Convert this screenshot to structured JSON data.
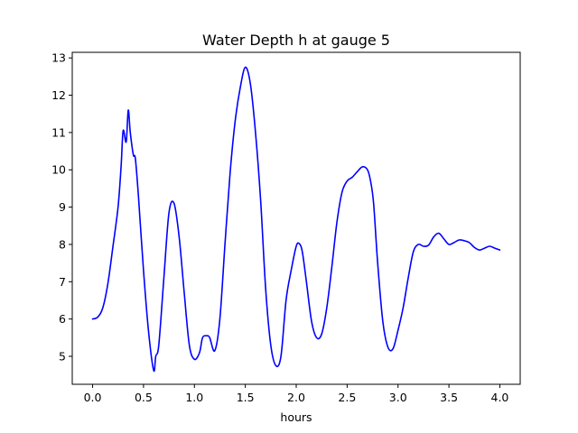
{
  "chart_data": {
    "type": "line",
    "title": "Water Depth h at gauge 5",
    "xlabel": "hours",
    "ylabel": "",
    "xlim": [
      -0.2,
      4.2
    ],
    "ylim": [
      4.25,
      13.15
    ],
    "xticks": [
      0.0,
      0.5,
      1.0,
      1.5,
      2.0,
      2.5,
      3.0,
      3.5,
      4.0
    ],
    "xtick_labels": [
      "0.0",
      "0.5",
      "1.0",
      "1.5",
      "2.0",
      "2.5",
      "3.0",
      "3.5",
      "4.0"
    ],
    "yticks": [
      5,
      6,
      7,
      8,
      9,
      10,
      11,
      12,
      13
    ],
    "ytick_labels": [
      "5",
      "6",
      "7",
      "8",
      "9",
      "10",
      "11",
      "12",
      "13"
    ],
    "grid": false,
    "legend": "none",
    "series": [
      {
        "color": "#0000ff",
        "x": [
          0.0,
          0.05,
          0.1,
          0.15,
          0.2,
          0.25,
          0.28,
          0.3,
          0.33,
          0.35,
          0.37,
          0.4,
          0.42,
          0.45,
          0.5,
          0.55,
          0.6,
          0.62,
          0.65,
          0.7,
          0.75,
          0.8,
          0.85,
          0.9,
          0.95,
          1.0,
          1.05,
          1.08,
          1.12,
          1.15,
          1.2,
          1.25,
          1.3,
          1.35,
          1.4,
          1.45,
          1.5,
          1.55,
          1.6,
          1.65,
          1.7,
          1.75,
          1.8,
          1.85,
          1.9,
          1.95,
          2.0,
          2.03,
          2.06,
          2.1,
          2.15,
          2.2,
          2.25,
          2.3,
          2.35,
          2.4,
          2.45,
          2.5,
          2.55,
          2.6,
          2.65,
          2.7,
          2.73,
          2.76,
          2.8,
          2.85,
          2.9,
          2.95,
          3.0,
          3.05,
          3.1,
          3.15,
          3.2,
          3.25,
          3.3,
          3.35,
          3.4,
          3.45,
          3.5,
          3.55,
          3.6,
          3.65,
          3.7,
          3.75,
          3.8,
          3.85,
          3.9,
          3.95,
          4.0
        ],
        "y": [
          6.0,
          6.05,
          6.3,
          6.95,
          7.95,
          9.0,
          10.1,
          11.05,
          10.75,
          11.6,
          11.0,
          10.4,
          10.3,
          9.3,
          7.3,
          5.65,
          4.62,
          5.0,
          5.3,
          7.1,
          8.85,
          9.1,
          8.2,
          6.7,
          5.3,
          4.92,
          5.1,
          5.5,
          5.55,
          5.5,
          5.15,
          6.0,
          8.0,
          9.9,
          11.3,
          12.2,
          12.75,
          12.3,
          11.0,
          9.2,
          6.8,
          5.3,
          4.75,
          5.0,
          6.5,
          7.3,
          7.95,
          8.02,
          7.8,
          7.0,
          5.95,
          5.5,
          5.6,
          6.3,
          7.4,
          8.6,
          9.4,
          9.7,
          9.8,
          9.95,
          10.08,
          10.0,
          9.7,
          9.1,
          7.5,
          5.95,
          5.25,
          5.2,
          5.7,
          6.3,
          7.1,
          7.8,
          8.0,
          7.95,
          7.98,
          8.2,
          8.3,
          8.15,
          8.0,
          8.05,
          8.12,
          8.1,
          8.05,
          7.92,
          7.85,
          7.9,
          7.95,
          7.9,
          7.85
        ]
      }
    ]
  }
}
